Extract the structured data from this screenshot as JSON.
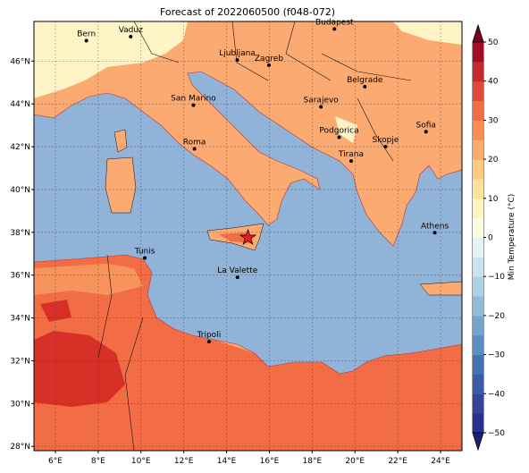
{
  "chart_data": {
    "type": "map",
    "title": "Forecast of 2022060500 (f048-072)",
    "xlim": [
      5,
      25
    ],
    "ylim": [
      27.8,
      47.85
    ],
    "xticks": [
      {
        "value": 6,
        "label": "6°E"
      },
      {
        "value": 8,
        "label": "8°E"
      },
      {
        "value": 10,
        "label": "10°E"
      },
      {
        "value": 12,
        "label": "12°E"
      },
      {
        "value": 14,
        "label": "14°E"
      },
      {
        "value": 16,
        "label": "16°E"
      },
      {
        "value": 18,
        "label": "18°E"
      },
      {
        "value": 20,
        "label": "20°E"
      },
      {
        "value": 22,
        "label": "22°E"
      },
      {
        "value": 24,
        "label": "24°E"
      }
    ],
    "yticks": [
      {
        "value": 28,
        "label": "28°N"
      },
      {
        "value": 30,
        "label": "30°N"
      },
      {
        "value": 32,
        "label": "32°N"
      },
      {
        "value": 34,
        "label": "34°N"
      },
      {
        "value": 36,
        "label": "36°N"
      },
      {
        "value": 38,
        "label": "38°N"
      },
      {
        "value": 40,
        "label": "40°N"
      },
      {
        "value": 42,
        "label": "42°N"
      },
      {
        "value": 44,
        "label": "44°N"
      },
      {
        "value": 46,
        "label": "46°N"
      }
    ],
    "grid": true,
    "cities": [
      {
        "name": "Bern",
        "lon": 7.45,
        "lat": 46.95
      },
      {
        "name": "Vaduz",
        "lon": 9.52,
        "lat": 47.14
      },
      {
        "name": "Budapest",
        "lon": 19.04,
        "lat": 47.5
      },
      {
        "name": "Ljubljana",
        "lon": 14.5,
        "lat": 46.05
      },
      {
        "name": "Zagreb",
        "lon": 15.98,
        "lat": 45.81
      },
      {
        "name": "Belgrade",
        "lon": 20.46,
        "lat": 44.8
      },
      {
        "name": "San Marino",
        "lon": 12.45,
        "lat": 43.94
      },
      {
        "name": "Sarajevo",
        "lon": 18.41,
        "lat": 43.86
      },
      {
        "name": "Sofia",
        "lon": 23.32,
        "lat": 42.7
      },
      {
        "name": "Roma",
        "lon": 12.5,
        "lat": 41.9
      },
      {
        "name": "Podgorica",
        "lon": 19.26,
        "lat": 42.44
      },
      {
        "name": "Skopje",
        "lon": 21.43,
        "lat": 42.0
      },
      {
        "name": "Tirana",
        "lon": 19.82,
        "lat": 41.33
      },
      {
        "name": "Athens",
        "lon": 23.73,
        "lat": 37.98
      },
      {
        "name": "Tunis",
        "lon": 10.18,
        "lat": 36.8
      },
      {
        "name": "La Valette",
        "lon": 14.51,
        "lat": 35.9
      },
      {
        "name": "Tripoli",
        "lon": 13.18,
        "lat": 32.89
      }
    ],
    "marker": {
      "lon": 15.0,
      "lat": 37.75,
      "color": "#e8201c"
    },
    "colorbar": {
      "label": "Min Temperature (°C)",
      "lim": [
        -50,
        50
      ],
      "ticks": [
        {
          "value": -50,
          "label": "−50"
        },
        {
          "value": -40,
          "label": "−40"
        },
        {
          "value": -30,
          "label": "−30"
        },
        {
          "value": -20,
          "label": "−20"
        },
        {
          "value": -10,
          "label": "−10"
        },
        0,
        10,
        20,
        30,
        40,
        50
      ],
      "colors": [
        "#2b2f8f",
        "#33449c",
        "#3b5ba8",
        "#4472b2",
        "#5b8ec0",
        "#74a6cd",
        "#90bcd9",
        "#abd2e5",
        "#c8e4ef",
        "#e3f3f6",
        "#fbfde3",
        "#fff4bf",
        "#fee19a",
        "#fec980",
        "#fcab6a",
        "#f88d54",
        "#f26d45",
        "#e0493a",
        "#c52a2e",
        "#a10e26"
      ],
      "under": "#1f1f78",
      "over": "#780020"
    }
  }
}
